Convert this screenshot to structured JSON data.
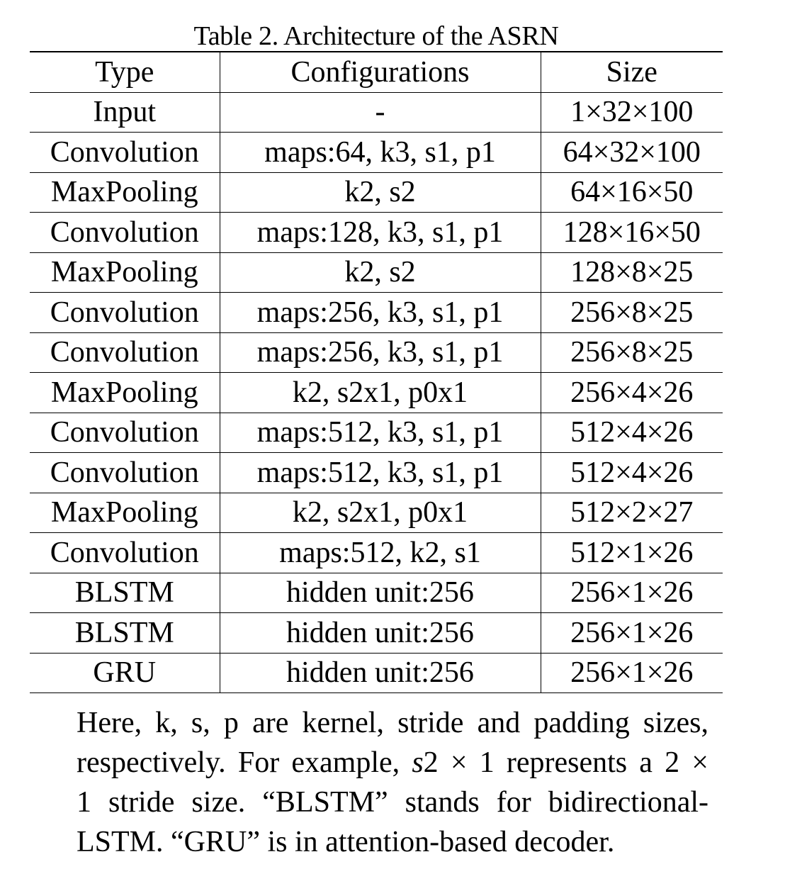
{
  "caption": "Table 2. Architecture of the ASRN",
  "table": {
    "headers": [
      "Type",
      "Configurations",
      "Size"
    ],
    "rows": [
      [
        "Input",
        "-",
        "1×32×100"
      ],
      [
        "Convolution",
        "maps:64, k3, s1, p1",
        "64×32×100"
      ],
      [
        "MaxPooling",
        "k2, s2",
        "64×16×50"
      ],
      [
        "Convolution",
        "maps:128, k3, s1, p1",
        "128×16×50"
      ],
      [
        "MaxPooling",
        "k2, s2",
        "128×8×25"
      ],
      [
        "Convolution",
        "maps:256, k3, s1, p1",
        "256×8×25"
      ],
      [
        "Convolution",
        "maps:256, k3, s1, p1",
        "256×8×25"
      ],
      [
        "MaxPooling",
        "k2, s2x1, p0x1",
        "256×4×26"
      ],
      [
        "Convolution",
        "maps:512, k3, s1, p1",
        "512×4×26"
      ],
      [
        "Convolution",
        "maps:512, k3, s1, p1",
        "512×4×26"
      ],
      [
        "MaxPooling",
        "k2, s2x1, p0x1",
        "512×2×27"
      ],
      [
        "Convolution",
        "maps:512, k2, s1",
        "512×1×26"
      ],
      [
        "BLSTM",
        "hidden unit:256",
        "256×1×26"
      ],
      [
        "BLSTM",
        "hidden unit:256",
        "256×1×26"
      ],
      [
        "GRU",
        "hidden unit:256",
        "256×1×26"
      ]
    ]
  },
  "note": {
    "line1": "Here, k, s, p are kernel, stride and padding sizes,",
    "line2_a": "respectively. For example, ",
    "line2_math": "s",
    "line2_b": "2 × 1 represents a 2 ×",
    "line3": "1 stride size.  “BLSTM” stands for bidirectional-",
    "line4": "LSTM. “GRU” is in attention-based decoder."
  }
}
